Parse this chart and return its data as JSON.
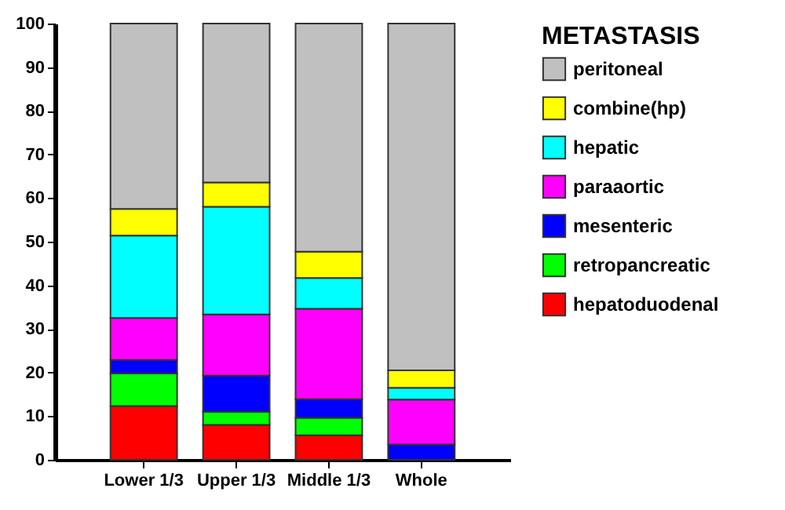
{
  "chart_data": {
    "type": "bar",
    "stacked": true,
    "legend": "right",
    "legend_title": "METASTASIS",
    "categories": [
      "Lower 1/3",
      "Upper 1/3",
      "Middle 1/3",
      "Whole"
    ],
    "ylim": [
      0,
      100
    ],
    "yticks": [
      0,
      10,
      20,
      30,
      40,
      50,
      60,
      70,
      80,
      90,
      100
    ],
    "series": [
      {
        "name": "hepatoduodenal",
        "color": "#ff0000",
        "values": [
          12.3,
          8.0,
          5.6,
          0
        ]
      },
      {
        "name": "retropancreatic",
        "color": "#00ff00",
        "values": [
          7.5,
          3.0,
          4.0,
          0
        ]
      },
      {
        "name": "mesenteric",
        "color": "#0000ff",
        "values": [
          3.1,
          8.3,
          4.3,
          3.5
        ]
      },
      {
        "name": "paraaortic",
        "color": "#ff00ff",
        "values": [
          9.6,
          14.0,
          20.7,
          10.3
        ]
      },
      {
        "name": "hepatic",
        "color": "#00ffff",
        "values": [
          18.9,
          24.7,
          7.1,
          2.7
        ]
      },
      {
        "name": "combine(hp)",
        "color": "#ffff00",
        "values": [
          6.1,
          5.6,
          6.0,
          4.0
        ]
      },
      {
        "name": "peritoneal",
        "color": "#c0c0c0",
        "values": [
          42.5,
          36.4,
          52.3,
          79.5
        ]
      }
    ]
  }
}
